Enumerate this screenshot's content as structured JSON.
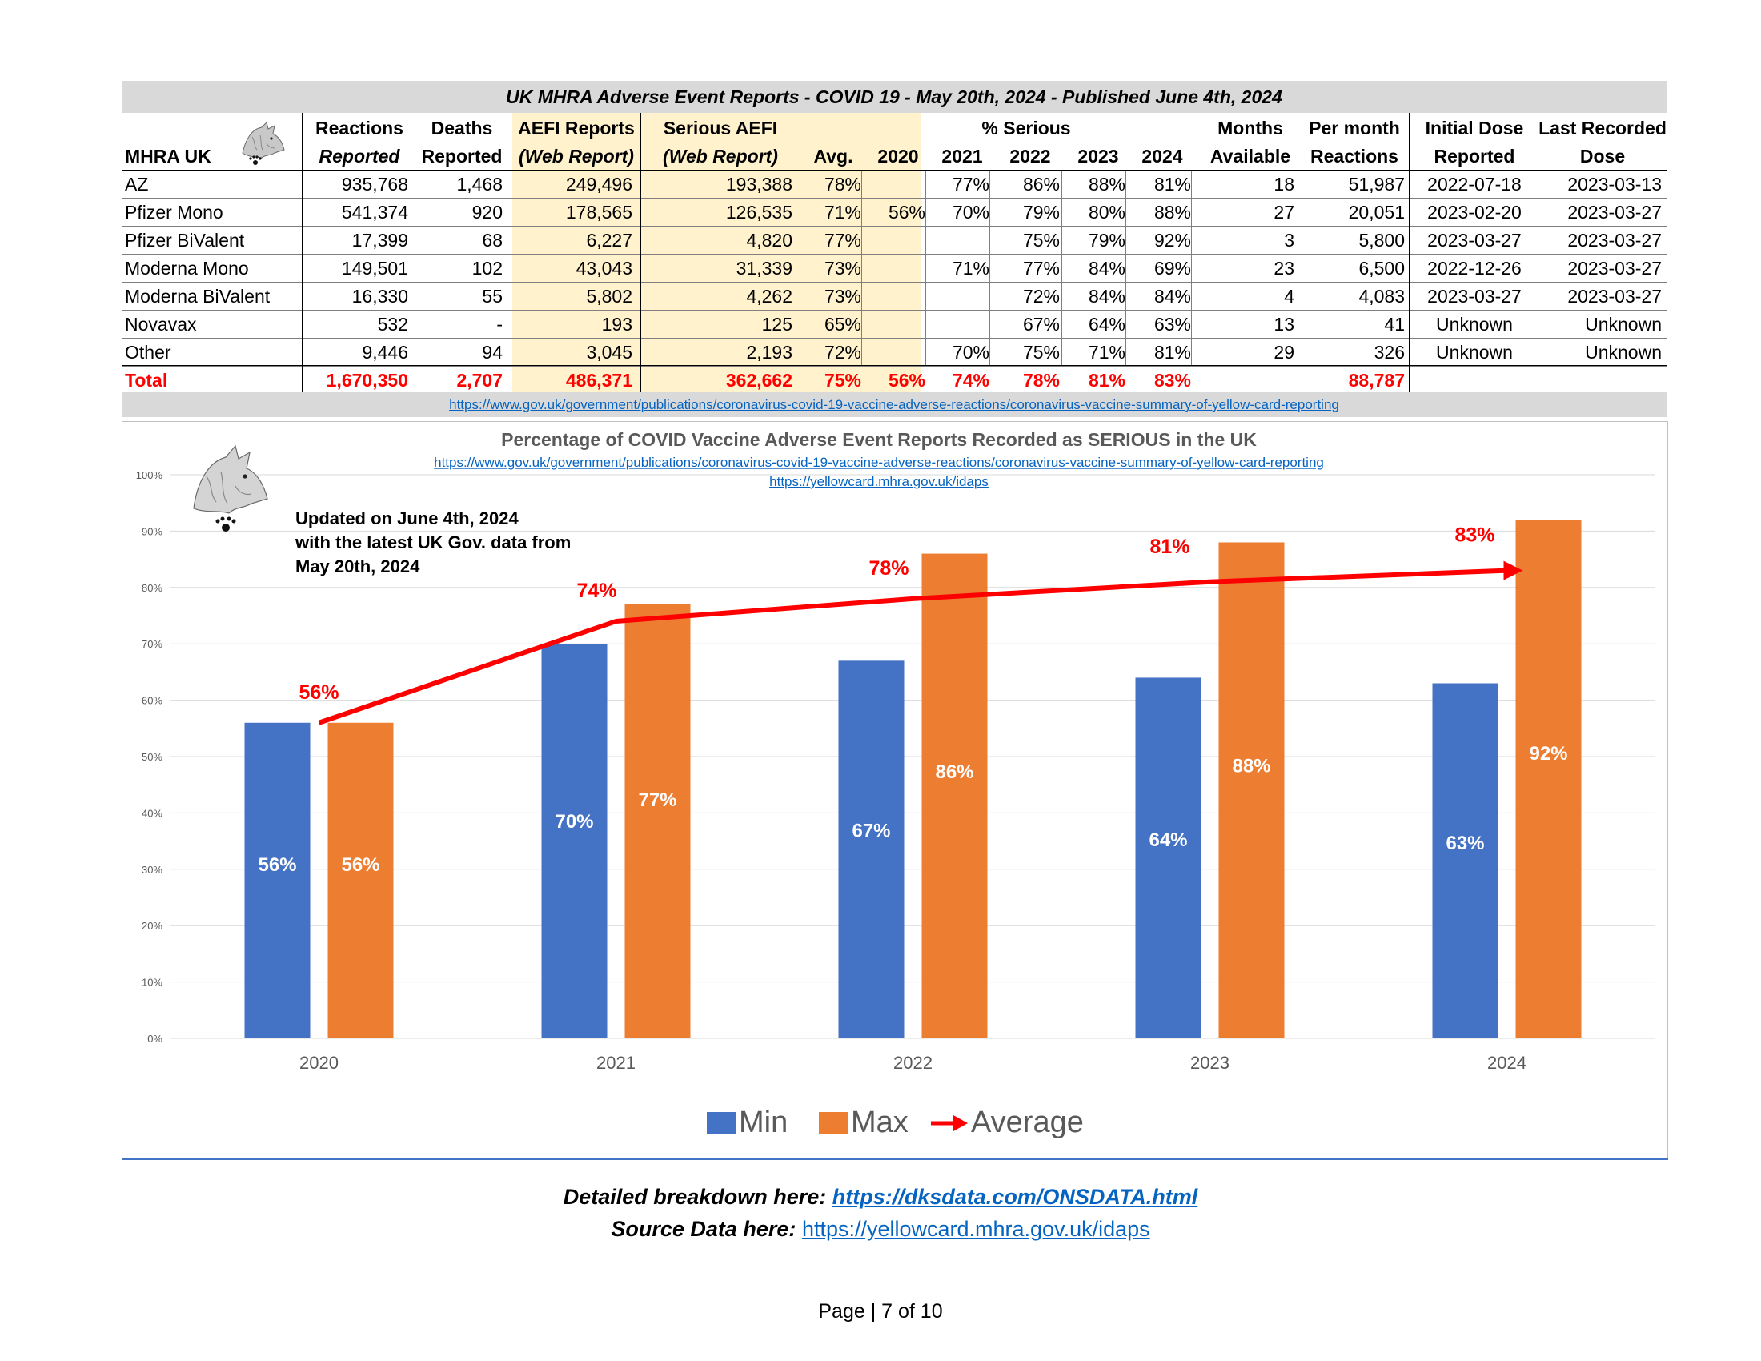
{
  "table": {
    "title": "UK MHRA Adverse Event Reports -  COVID 19 - May 20th, 2024 - Published June 4th, 2024",
    "header_top": [
      "Reactions",
      "Deaths",
      "AEFI Reports",
      "Serious AEFI",
      "% Serious",
      "Months",
      "Per month",
      "Initial Dose",
      "Last Recorded"
    ],
    "header_bottom": [
      "MHRA UK",
      "Reported",
      "Reported",
      "(Web Report)",
      "(Web Report)",
      "Avg.",
      "2020",
      "2021",
      "2022",
      "2023",
      "2024",
      "Available",
      "Reactions",
      "Reported",
      "Dose"
    ],
    "rows": [
      {
        "name": "AZ",
        "reactions": "935,768",
        "deaths": "1,468",
        "aefi": "249,496",
        "serious": "193,388",
        "avg": "78%",
        "y2020": "",
        "y2021": "77%",
        "y2022": "86%",
        "y2023": "88%",
        "y2024": "81%",
        "months": "18",
        "per_month": "51,987",
        "initial": "2022-07-18",
        "last": "2023-03-13"
      },
      {
        "name": "Pfizer Mono",
        "reactions": "541,374",
        "deaths": "920",
        "aefi": "178,565",
        "serious": "126,535",
        "avg": "71%",
        "y2020": "56%",
        "y2021": "70%",
        "y2022": "79%",
        "y2023": "80%",
        "y2024": "88%",
        "months": "27",
        "per_month": "20,051",
        "initial": "2023-02-20",
        "last": "2023-03-27"
      },
      {
        "name": "Pfizer BiValent",
        "reactions": "17,399",
        "deaths": "68",
        "aefi": "6,227",
        "serious": "4,820",
        "avg": "77%",
        "y2020": "",
        "y2021": "",
        "y2022": "75%",
        "y2023": "79%",
        "y2024": "92%",
        "months": "3",
        "per_month": "5,800",
        "initial": "2023-03-27",
        "last": "2023-03-27"
      },
      {
        "name": "Moderna Mono",
        "reactions": "149,501",
        "deaths": "102",
        "aefi": "43,043",
        "serious": "31,339",
        "avg": "73%",
        "y2020": "",
        "y2021": "71%",
        "y2022": "77%",
        "y2023": "84%",
        "y2024": "69%",
        "months": "23",
        "per_month": "6,500",
        "initial": "2022-12-26",
        "last": "2023-03-27"
      },
      {
        "name": "Moderna BiValent",
        "reactions": "16,330",
        "deaths": "55",
        "aefi": "5,802",
        "serious": "4,262",
        "avg": "73%",
        "y2020": "",
        "y2021": "",
        "y2022": "72%",
        "y2023": "84%",
        "y2024": "84%",
        "months": "4",
        "per_month": "4,083",
        "initial": "2023-03-27",
        "last": "2023-03-27"
      },
      {
        "name": "Novavax",
        "reactions": "532",
        "deaths": "-",
        "aefi": "193",
        "serious": "125",
        "avg": "65%",
        "y2020": "",
        "y2021": "",
        "y2022": "67%",
        "y2023": "64%",
        "y2024": "63%",
        "months": "13",
        "per_month": "41",
        "initial": "Unknown",
        "last": "Unknown"
      },
      {
        "name": "Other",
        "reactions": "9,446",
        "deaths": "94",
        "aefi": "3,045",
        "serious": "2,193",
        "avg": "72%",
        "y2020": "",
        "y2021": "70%",
        "y2022": "75%",
        "y2023": "71%",
        "y2024": "81%",
        "months": "29",
        "per_month": "326",
        "initial": "Unknown",
        "last": "Unknown"
      }
    ],
    "total": {
      "name": "Total",
      "reactions": "1,670,350",
      "deaths": "2,707",
      "aefi": "486,371",
      "serious": "362,662",
      "avg": "75%",
      "y2020": "56%",
      "y2021": "74%",
      "y2022": "78%",
      "y2023": "81%",
      "y2024": "83%",
      "months": "",
      "per_month": "88,787",
      "initial": "",
      "last": ""
    },
    "source_link": "https://www.gov.uk/government/publications/coronavirus-covid-19-vaccine-adverse-reactions/coronavirus-vaccine-summary-of-yellow-card-reporting"
  },
  "chart_data": {
    "type": "bar",
    "title": "Percentage of COVID Vaccine Adverse Event Reports Recorded as SERIOUS in the UK",
    "subtitle_links": [
      "https://www.gov.uk/government/publications/coronavirus-covid-19-vaccine-adverse-reactions/coronavirus-vaccine-summary-of-yellow-card-reporting",
      "https://yellowcard.mhra.gov.uk/idaps"
    ],
    "annotation": [
      "Updated on June 4th, 2024",
      "with the latest UK Gov. data from",
      "May 20th, 2024"
    ],
    "categories": [
      "2020",
      "2021",
      "2022",
      "2023",
      "2024"
    ],
    "series": [
      {
        "name": "Min",
        "type": "bar",
        "color": "#4472c4",
        "values": [
          56,
          70,
          67,
          64,
          63
        ],
        "labels": [
          "56%",
          "70%",
          "67%",
          "64%",
          "63%"
        ]
      },
      {
        "name": "Max",
        "type": "bar",
        "color": "#ed7d31",
        "values": [
          56,
          77,
          86,
          88,
          92
        ],
        "labels": [
          "56%",
          "77%",
          "86%",
          "88%",
          "92%"
        ]
      },
      {
        "name": "Average",
        "type": "line",
        "color": "#ff0000",
        "values": [
          56,
          74,
          78,
          81,
          83
        ],
        "labels": [
          "56%",
          "74%",
          "78%",
          "81%",
          "83%"
        ]
      }
    ],
    "ylim": [
      0,
      100
    ],
    "yticks": [
      "0%",
      "10%",
      "20%",
      "30%",
      "40%",
      "50%",
      "60%",
      "70%",
      "80%",
      "90%",
      "100%"
    ],
    "legend_position": "bottom",
    "grid": true
  },
  "footer": {
    "breakdown_label": "Detailed breakdown here: ",
    "breakdown_link": "https://dksdata.com/ONSDATA.html",
    "source_label": "Source Data here: ",
    "source_link": "https://yellowcard.mhra.gov.uk/idaps",
    "page": "Page | 7 of 10"
  }
}
